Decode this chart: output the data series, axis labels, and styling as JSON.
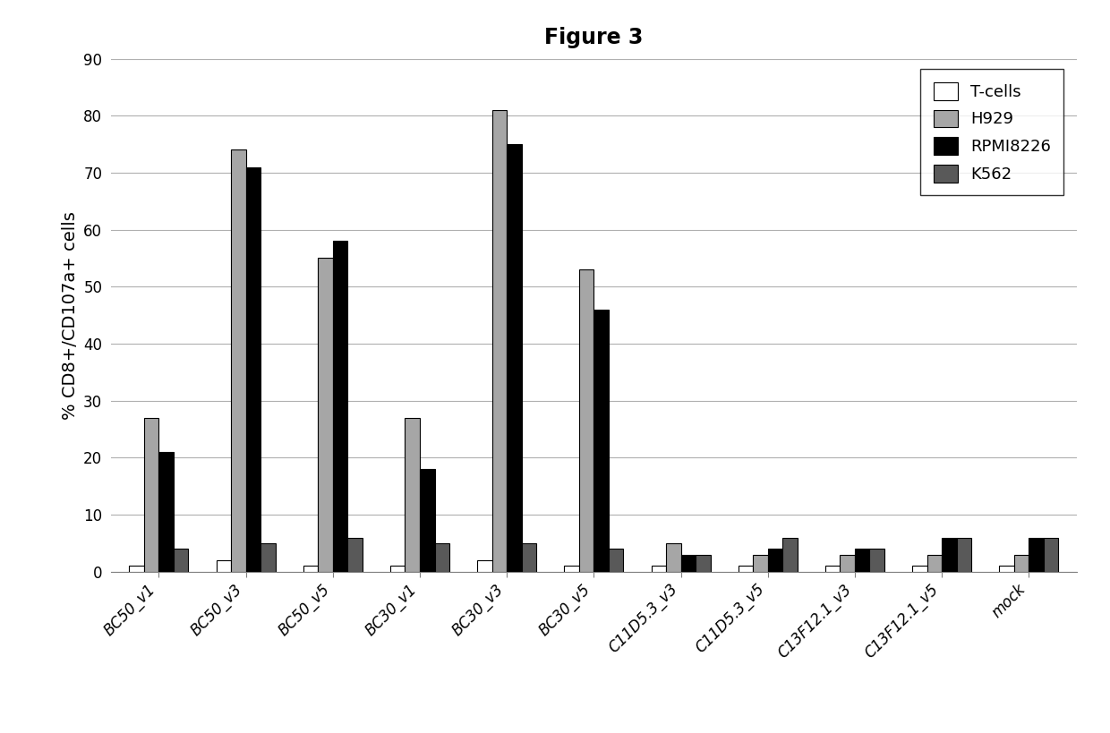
{
  "title": "Figure 3",
  "ylabel": "% CD8+/CD107a+ cells",
  "categories": [
    "BC50_v1",
    "BC50_v3",
    "BC50_v5",
    "BC30_v1",
    "BC30_v3",
    "BC30_v5",
    "C11D5.3_v3",
    "C11D5.3_v5",
    "C13F12.1_v3",
    "C13F12.1_v5",
    "mock"
  ],
  "series": {
    "T-cells": [
      1,
      2,
      1,
      1,
      2,
      1,
      1,
      1,
      1,
      1,
      1
    ],
    "H929": [
      27,
      74,
      55,
      27,
      81,
      53,
      5,
      3,
      3,
      3,
      3
    ],
    "RPMI8226": [
      21,
      71,
      58,
      18,
      75,
      46,
      3,
      4,
      4,
      6,
      6
    ],
    "K562": [
      4,
      5,
      6,
      5,
      5,
      4,
      3,
      6,
      4,
      6,
      6
    ]
  },
  "colors": {
    "T-cells": "#ffffff",
    "H929": "#a6a6a6",
    "RPMI8226": "#000000",
    "K562": "#595959"
  },
  "ylim": [
    0,
    90
  ],
  "yticks": [
    0,
    10,
    20,
    30,
    40,
    50,
    60,
    70,
    80,
    90
  ],
  "bar_width": 0.17,
  "background_color": "#ffffff",
  "title_fontsize": 17,
  "label_fontsize": 14,
  "tick_fontsize": 12,
  "legend_fontsize": 13
}
